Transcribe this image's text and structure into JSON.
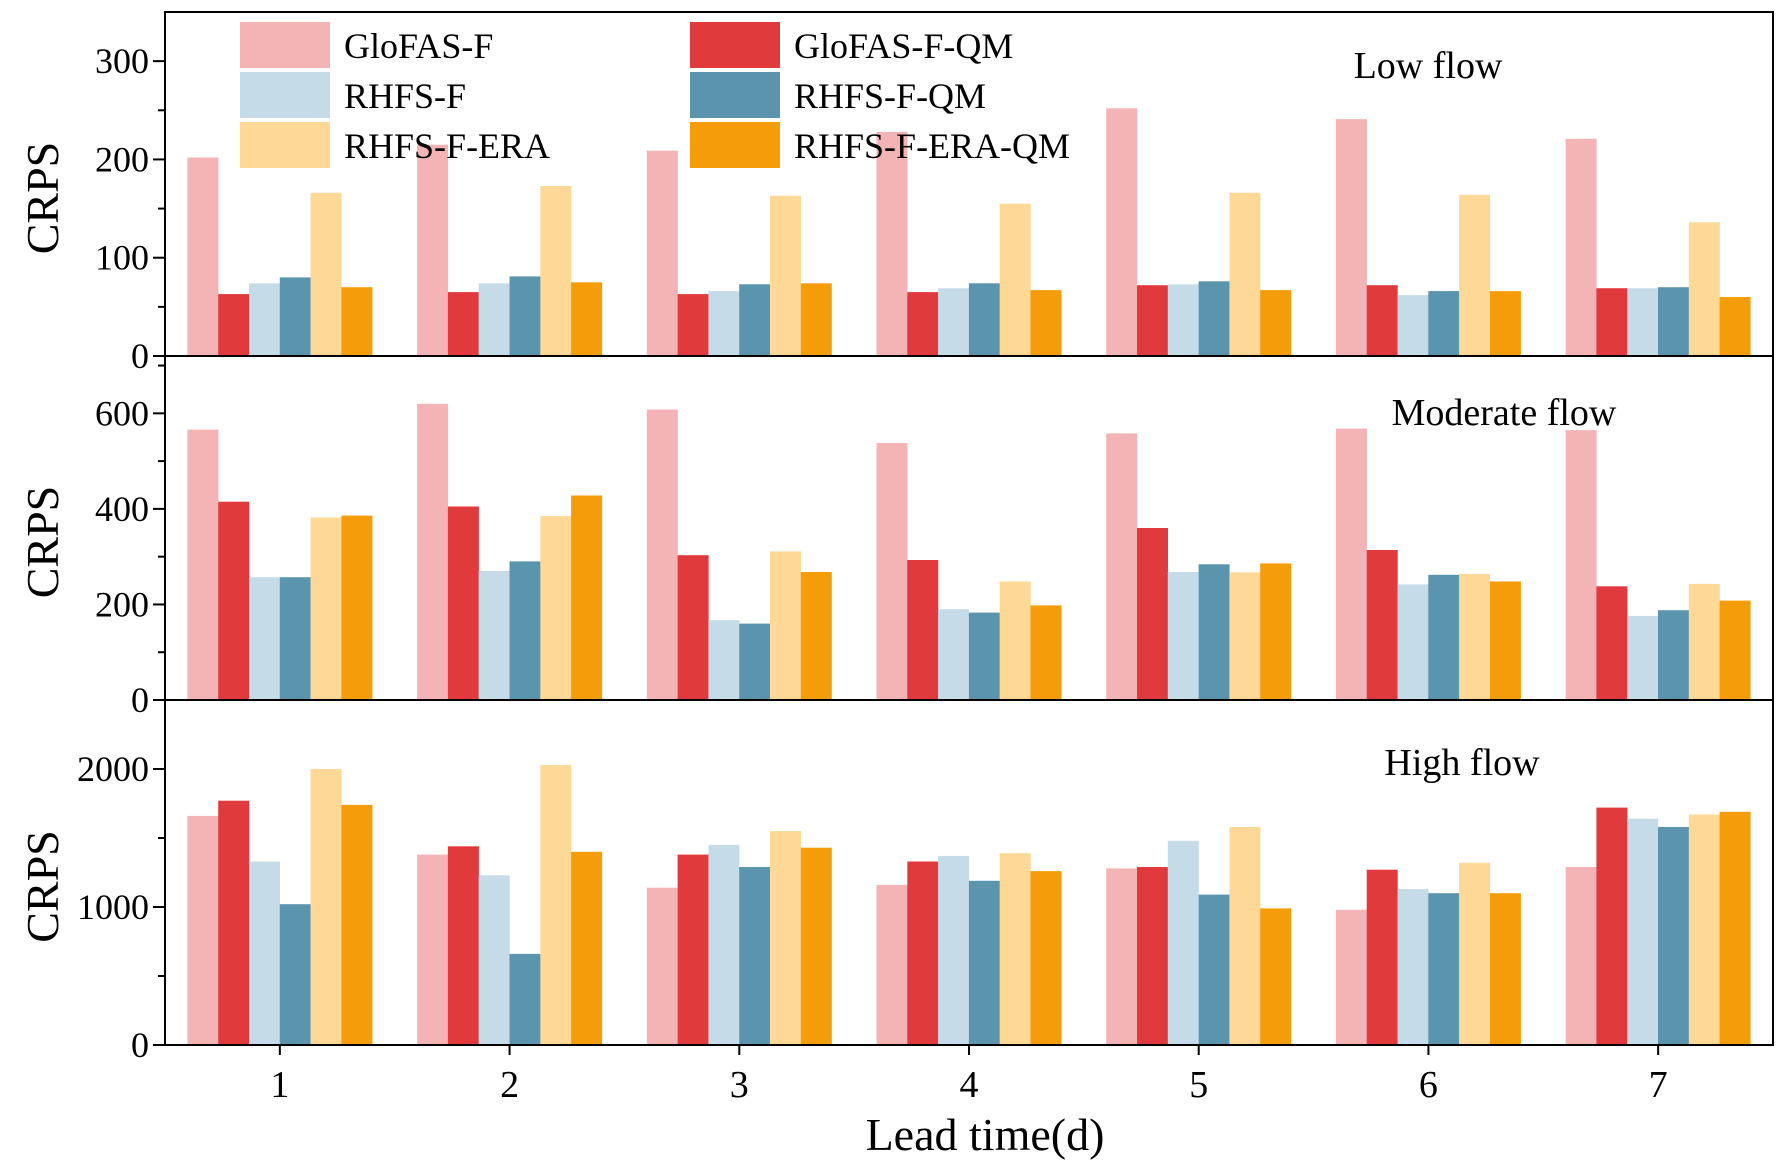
{
  "chart_data": {
    "type": "bar",
    "xlabel": "Lead time(d)",
    "categories": [
      "1",
      "2",
      "3",
      "4",
      "5",
      "6",
      "7"
    ],
    "legend": {
      "position": "top-left",
      "entries": [
        {
          "name": "GloFAS-F",
          "color": "#f4b4b6"
        },
        {
          "name": "GloFAS-F-QM",
          "color": "#e03a3c"
        },
        {
          "name": "RHFS-F",
          "color": "#c6dbe8"
        },
        {
          "name": "RHFS-F-QM",
          "color": "#5b94ad"
        },
        {
          "name": "RHFS-F-ERA",
          "color": "#fdd896"
        },
        {
          "name": "RHFS-F-ERA-QM",
          "color": "#f59c0a"
        }
      ]
    },
    "panels": [
      {
        "title": "Low flow",
        "ylabel": "CRPS",
        "ylim": [
          0,
          350
        ],
        "yticks": [
          0,
          100,
          200,
          300
        ],
        "series": [
          {
            "name": "GloFAS-F",
            "values": [
              202,
              215,
              209,
              228,
              252,
              241,
              221
            ]
          },
          {
            "name": "GloFAS-F-QM",
            "values": [
              63,
              65,
              63,
              65,
              72,
              72,
              69
            ]
          },
          {
            "name": "RHFS-F",
            "values": [
              74,
              74,
              66,
              69,
              73,
              62,
              69
            ]
          },
          {
            "name": "RHFS-F-QM",
            "values": [
              80,
              81,
              73,
              74,
              76,
              66,
              70
            ]
          },
          {
            "name": "RHFS-F-ERA",
            "values": [
              166,
              173,
              163,
              155,
              166,
              164,
              136
            ]
          },
          {
            "name": "RHFS-F-ERA-QM",
            "values": [
              70,
              75,
              74,
              67,
              67,
              66,
              60
            ]
          }
        ]
      },
      {
        "title": "Moderate flow",
        "ylabel": "CRPS",
        "ylim": [
          0,
          720
        ],
        "yticks": [
          0,
          200,
          400,
          600
        ],
        "series": [
          {
            "name": "GloFAS-F",
            "values": [
              566,
              620,
              608,
              538,
              558,
              568,
              565
            ]
          },
          {
            "name": "GloFAS-F-QM",
            "values": [
              415,
              405,
              303,
              293,
              360,
              314,
              238
            ]
          },
          {
            "name": "RHFS-F",
            "values": [
              257,
              270,
              167,
              190,
              268,
              242,
              176
            ]
          },
          {
            "name": "RHFS-F-QM",
            "values": [
              257,
              290,
              160,
              183,
              284,
              262,
              188
            ]
          },
          {
            "name": "RHFS-F-ERA",
            "values": [
              382,
              385,
              311,
              248,
              267,
              264,
              243
            ]
          },
          {
            "name": "RHFS-F-ERA-QM",
            "values": [
              386,
              428,
              268,
              198,
              286,
              248,
              208
            ]
          }
        ]
      },
      {
        "title": "High flow",
        "ylabel": "CRPS",
        "ylim": [
          0,
          2500
        ],
        "yticks": [
          0,
          1000,
          2000
        ],
        "series": [
          {
            "name": "GloFAS-F",
            "values": [
              1660,
              1380,
              1140,
              1160,
              1280,
              980,
              1290
            ]
          },
          {
            "name": "GloFAS-F-QM",
            "values": [
              1770,
              1440,
              1380,
              1330,
              1290,
              1270,
              1720
            ]
          },
          {
            "name": "RHFS-F",
            "values": [
              1330,
              1230,
              1450,
              1370,
              1480,
              1130,
              1640
            ]
          },
          {
            "name": "RHFS-F-QM",
            "values": [
              1020,
              660,
              1290,
              1190,
              1090,
              1100,
              1580
            ]
          },
          {
            "name": "RHFS-F-ERA",
            "values": [
              2000,
              2030,
              1550,
              1390,
              1580,
              1320,
              1670
            ]
          },
          {
            "name": "RHFS-F-ERA-QM",
            "values": [
              1740,
              1400,
              1430,
              1260,
              990,
              1100,
              1690
            ]
          }
        ]
      }
    ]
  }
}
